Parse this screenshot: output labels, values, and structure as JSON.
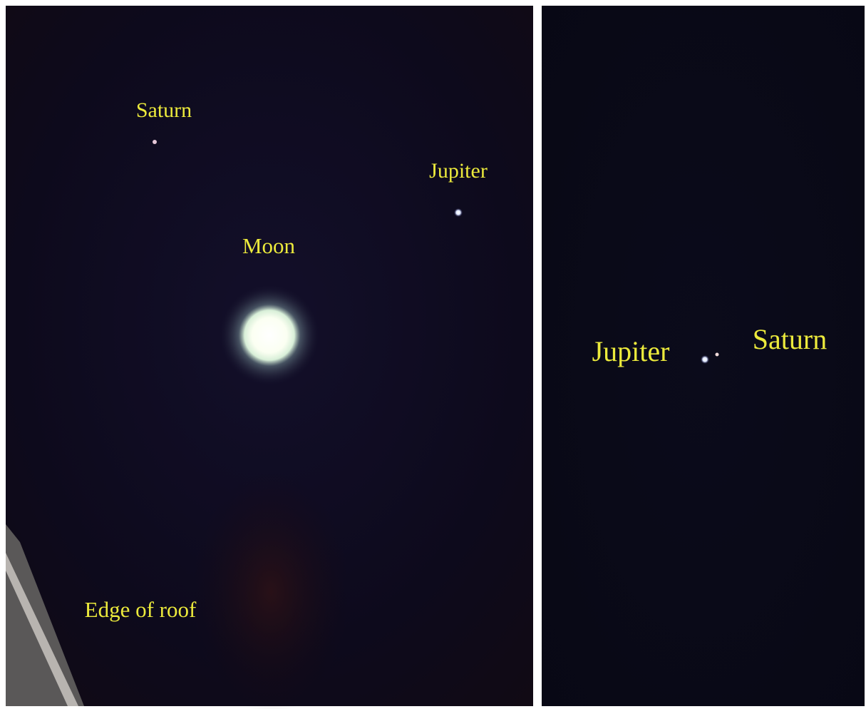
{
  "left_panel": {
    "labels": [
      "Saturn",
      "Jupiter",
      "Moon",
      "Edge of roof"
    ]
  },
  "right_panel": {
    "labels": [
      "Jupiter",
      "Saturn"
    ]
  }
}
